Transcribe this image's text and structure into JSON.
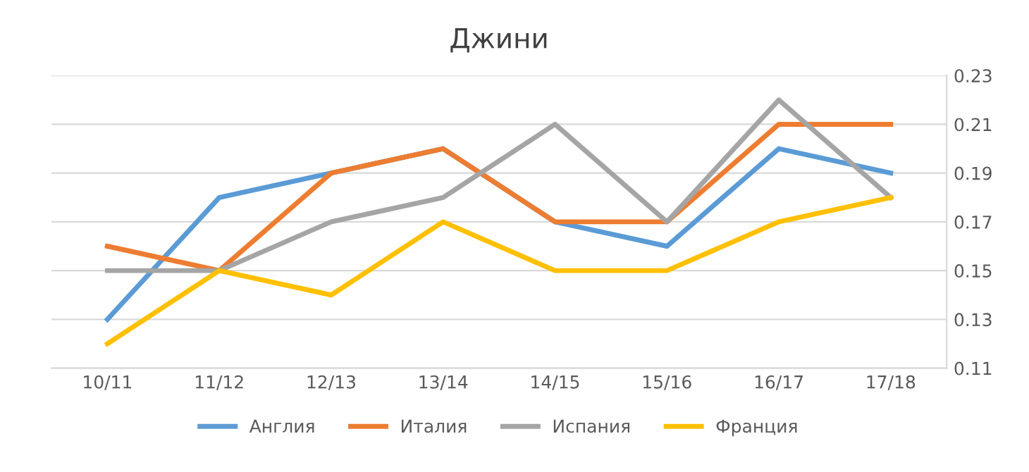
{
  "chart_data": {
    "type": "line",
    "title": "Джини",
    "categories": [
      "10/11",
      "11/12",
      "12/13",
      "13/14",
      "14/15",
      "15/16",
      "16/17",
      "17/18"
    ],
    "series": [
      {
        "name": "Англия",
        "color": "#5b9bd5",
        "values": [
          0.13,
          0.18,
          0.19,
          0.2,
          0.17,
          0.16,
          0.2,
          0.19
        ]
      },
      {
        "name": "Италия",
        "color": "#ed7d31",
        "values": [
          0.16,
          0.15,
          0.19,
          0.2,
          0.17,
          0.17,
          0.21,
          0.21
        ]
      },
      {
        "name": "Испания",
        "color": "#a5a5a5",
        "values": [
          0.15,
          0.15,
          0.17,
          0.18,
          0.21,
          0.17,
          0.22,
          0.18
        ]
      },
      {
        "name": "Франция",
        "color": "#ffc000",
        "values": [
          0.12,
          0.15,
          0.14,
          0.17,
          0.15,
          0.15,
          0.17,
          0.18
        ]
      }
    ],
    "ylim": [
      0.11,
      0.23
    ],
    "yticks": [
      0.11,
      0.13,
      0.15,
      0.17,
      0.19,
      0.21,
      0.23
    ],
    "grid": "y",
    "legend": "bottom",
    "marker": "none",
    "line_style": "solid"
  }
}
